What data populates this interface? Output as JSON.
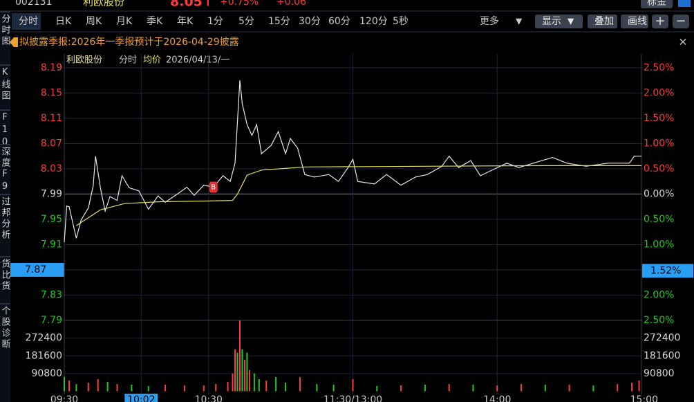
{
  "quote": {
    "code": "002131",
    "name": "利欧股份",
    "price": "8.05↑",
    "change_pct": "+0.75%",
    "change": "+0.06",
    "button": "标金"
  },
  "tabs": [
    "分时",
    "日K",
    "周K",
    "月K",
    "季K",
    "年K",
    "1分",
    "5分",
    "15分",
    "30分",
    "60分",
    "120分",
    "5秒",
    "更多"
  ],
  "buttons": [
    "显示",
    "叠加",
    "画线"
  ],
  "sidebar": [
    "分时图",
    "K线图",
    "F10",
    "深度F9",
    "过邦分析",
    "货比货",
    "个股诊断"
  ],
  "banner": "拟披露季报:2026年一季报预计于2026-04-29披露",
  "chart_data": {
    "type": "line",
    "title": "利欧股份",
    "date": "2026/04/13/一",
    "xlim": [
      0,
      240
    ],
    "xticks": [
      {
        "value": 0,
        "label": "09:30"
      },
      {
        "value": 32,
        "label": "10:02"
      },
      {
        "value": 60,
        "label": "10:30"
      },
      {
        "value": 120,
        "label": "11:30/13:00"
      },
      {
        "value": 180,
        "label": "14:00"
      },
      {
        "value": 240,
        "label": "15:00"
      }
    ],
    "highlight_xtick": 1,
    "ylim": [
      7.79,
      8.19
    ],
    "yticks": [
      8.19,
      8.15,
      8.11,
      8.07,
      8.03,
      7.99,
      7.95,
      7.91,
      7.87,
      7.83,
      7.79
    ],
    "y2lim": [
      -2.5,
      2.5
    ],
    "y2ticks": [
      {
        "value": 2.5,
        "label": "2.50%"
      },
      {
        "value": 2,
        "label": "2.00%"
      },
      {
        "value": 1.5,
        "label": "1.50%"
      },
      {
        "value": 1,
        "label": "1.00%"
      },
      {
        "value": 0.5,
        "label": "0.50%"
      },
      {
        "value": 0,
        "label": "0.00%"
      },
      {
        "value": -0.5,
        "label": "0.50%"
      },
      {
        "value": -1,
        "label": "1.00%"
      },
      {
        "value": -1.52,
        "label": "1.52%"
      },
      {
        "value": -2,
        "label": "2.00%"
      },
      {
        "value": -2.5,
        "label": "2.50%"
      }
    ],
    "highlight_tick": 8,
    "base_tick": 5,
    "up_color": "#ff3b3b",
    "down_color": "#22c922",
    "flat_color": "#d8d8d8",
    "highlight_color": "#2a9df4",
    "grid_color": "#1c2637",
    "series": [
      {
        "name": "分时",
        "color": "#e8e8e8",
        "x": [
          0,
          1,
          2,
          5,
          7,
          10,
          12,
          13,
          15,
          17,
          19,
          22,
          24,
          27,
          31,
          35,
          39,
          42,
          47,
          51,
          54,
          58,
          62,
          66,
          69,
          71,
          73,
          74,
          76,
          78,
          80,
          82,
          86,
          89,
          92,
          94,
          97,
          100,
          104,
          110,
          114,
          118,
          120,
          122,
          129,
          134,
          140,
          146,
          151,
          157,
          160,
          164,
          169,
          173,
          179,
          184,
          189,
          195,
          203,
          209,
          217,
          226,
          235,
          237,
          240
        ],
        "values": [
          7.914,
          7.971,
          7.97,
          7.92,
          7.949,
          7.968,
          8.003,
          8.05,
          8.0,
          7.963,
          7.986,
          7.98,
          8.019,
          8.0,
          7.995,
          7.966,
          7.987,
          7.977,
          7.99,
          8.001,
          7.988,
          8.004,
          8.001,
          8.019,
          8.01,
          8.039,
          8.17,
          8.133,
          8.1,
          8.083,
          8.1,
          8.054,
          8.067,
          8.089,
          8.054,
          8.078,
          8.063,
          8.021,
          8.017,
          8.021,
          8.01,
          8.032,
          8.045,
          8.01,
          8.006,
          8.021,
          8.004,
          8.017,
          8.021,
          8.034,
          8.05,
          8.032,
          8.043,
          8.019,
          8.03,
          8.039,
          8.032,
          8.039,
          8.048,
          8.039,
          8.034,
          8.039,
          8.039,
          8.05,
          8.05
        ]
      },
      {
        "name": "均价",
        "color": "#e6e05a",
        "x": [
          5,
          15,
          25,
          40,
          60,
          70,
          72,
          74,
          76,
          82,
          100,
          150,
          200,
          240
        ],
        "values": [
          7.94,
          7.965,
          7.975,
          7.978,
          7.979,
          7.98,
          7.99,
          8.005,
          8.02,
          8.028,
          8.033,
          8.034,
          8.035,
          8.035
        ]
      }
    ],
    "marker": {
      "label": "B",
      "x": 62,
      "price": 7.99
    },
    "volume": {
      "ylim": [
        0,
        363200
      ],
      "yticks": [
        272400,
        181600,
        90800
      ],
      "x": [
        0,
        2,
        5,
        10,
        14,
        18,
        22,
        28,
        35,
        42,
        50,
        58,
        63,
        68,
        70,
        71,
        72,
        73,
        74,
        75,
        76,
        77,
        79,
        81,
        84,
        88,
        92,
        98,
        105,
        112,
        120,
        130,
        140,
        150,
        160,
        170,
        180,
        190,
        200,
        210,
        220,
        230,
        236,
        239
      ],
      "values": [
        73000,
        55000,
        37000,
        44000,
        62000,
        48000,
        37000,
        34000,
        27000,
        34000,
        30000,
        30000,
        37000,
        48000,
        91000,
        215000,
        198000,
        363200,
        215000,
        162000,
        198000,
        109000,
        91000,
        62000,
        55000,
        73000,
        44000,
        73000,
        37000,
        34000,
        62000,
        27000,
        30000,
        34000,
        37000,
        34000,
        30000,
        37000,
        34000,
        34000,
        30000,
        37000,
        44000,
        55000
      ],
      "up": [
        false,
        true,
        false,
        true,
        true,
        false,
        true,
        false,
        false,
        true,
        true,
        true,
        true,
        true,
        true,
        true,
        false,
        true,
        false,
        true,
        false,
        true,
        false,
        false,
        true,
        false,
        false,
        true,
        false,
        false,
        true,
        false,
        true,
        false,
        true,
        false,
        true,
        true,
        false,
        true,
        false,
        true,
        true,
        true
      ]
    }
  }
}
